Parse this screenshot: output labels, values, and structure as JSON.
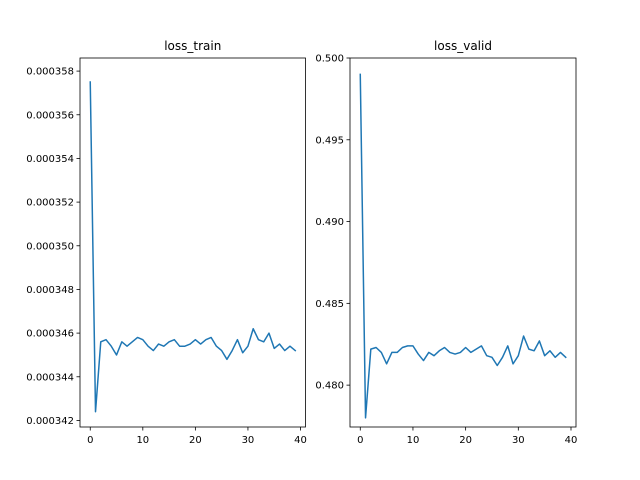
{
  "chart_data": [
    {
      "type": "line",
      "title": "loss_train",
      "xlabel": "",
      "ylabel": "",
      "xlim": [
        -1.95,
        40.95
      ],
      "ylim": [
        0.0003417,
        0.0003586
      ],
      "xticks": [
        0,
        10,
        20,
        30,
        40
      ],
      "xtick_labels": [
        "0",
        "10",
        "20",
        "30",
        "40"
      ],
      "yticks": [
        0.000342,
        0.000344,
        0.000346,
        0.000348,
        0.00035,
        0.000352,
        0.000354,
        0.000356,
        0.000358
      ],
      "ytick_labels": [
        "0.000342",
        "0.000344",
        "0.000346",
        "0.000348",
        "0.000350",
        "0.000352",
        "0.000354",
        "0.000356",
        "0.000358"
      ],
      "grid": false,
      "color": "#1f77b4",
      "x": [
        0,
        1,
        2,
        3,
        4,
        5,
        6,
        7,
        8,
        9,
        10,
        11,
        12,
        13,
        14,
        15,
        16,
        17,
        18,
        19,
        20,
        21,
        22,
        23,
        24,
        25,
        26,
        27,
        28,
        29,
        30,
        31,
        32,
        33,
        34,
        35,
        36,
        37,
        38,
        39
      ],
      "values": [
        0.0003575,
        0.0003424,
        0.0003456,
        0.0003457,
        0.0003454,
        0.000345,
        0.0003456,
        0.0003454,
        0.0003456,
        0.0003458,
        0.0003457,
        0.0003454,
        0.0003452,
        0.0003455,
        0.0003454,
        0.0003456,
        0.0003457,
        0.0003454,
        0.0003454,
        0.0003455,
        0.0003457,
        0.0003455,
        0.0003457,
        0.0003458,
        0.0003454,
        0.0003452,
        0.0003448,
        0.0003452,
        0.0003457,
        0.0003451,
        0.0003454,
        0.0003462,
        0.0003457,
        0.0003456,
        0.000346,
        0.0003453,
        0.0003455,
        0.0003452,
        0.0003454,
        0.0003452
      ]
    },
    {
      "type": "line",
      "title": "loss_valid",
      "xlabel": "",
      "ylabel": "",
      "xlim": [
        -1.95,
        40.95
      ],
      "ylim": [
        0.47744,
        0.5
      ],
      "xticks": [
        0,
        10,
        20,
        30,
        40
      ],
      "xtick_labels": [
        "0",
        "10",
        "20",
        "30",
        "40"
      ],
      "yticks": [
        0.48,
        0.485,
        0.49,
        0.495,
        0.5
      ],
      "ytick_labels": [
        "0.480",
        "0.485",
        "0.490",
        "0.495",
        "0.500"
      ],
      "grid": false,
      "color": "#1f77b4",
      "x": [
        0,
        1,
        2,
        3,
        4,
        5,
        6,
        7,
        8,
        9,
        10,
        11,
        12,
        13,
        14,
        15,
        16,
        17,
        18,
        19,
        20,
        21,
        22,
        23,
        24,
        25,
        26,
        27,
        28,
        29,
        30,
        31,
        32,
        33,
        34,
        35,
        36,
        37,
        38,
        39
      ],
      "values": [
        0.499,
        0.478,
        0.4822,
        0.4823,
        0.482,
        0.4813,
        0.482,
        0.482,
        0.4823,
        0.4824,
        0.4824,
        0.4819,
        0.4815,
        0.482,
        0.4818,
        0.4821,
        0.4823,
        0.482,
        0.4819,
        0.482,
        0.4823,
        0.482,
        0.4822,
        0.4824,
        0.4818,
        0.4817,
        0.4812,
        0.4817,
        0.4824,
        0.4813,
        0.4818,
        0.483,
        0.4822,
        0.4821,
        0.4827,
        0.4818,
        0.4821,
        0.4817,
        0.482,
        0.4817
      ]
    }
  ]
}
